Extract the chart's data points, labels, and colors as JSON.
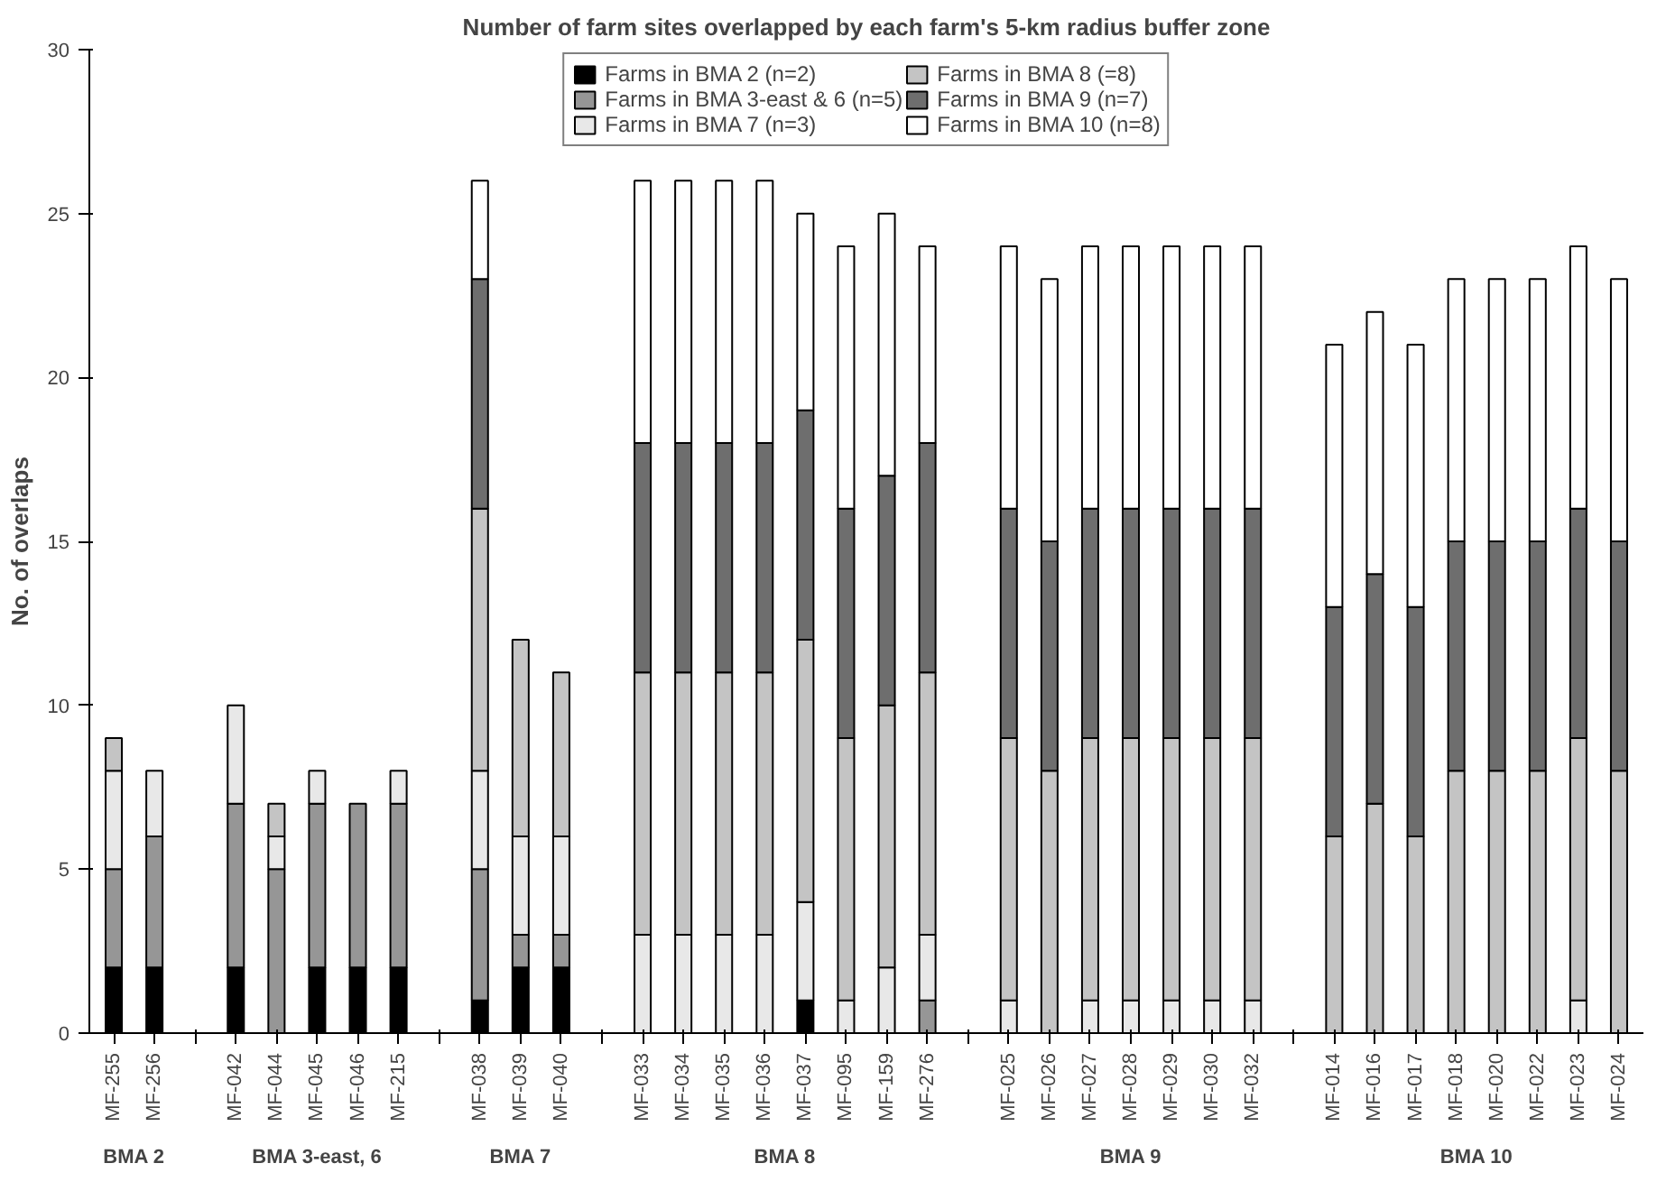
{
  "chart_data": {
    "type": "bar",
    "stacked": true,
    "title": "Number of farm sites overlapped by each farm's 5-km radius buffer zone",
    "ylabel": "No. of overlaps",
    "categories": [
      "MF-255",
      "MF-256",
      null,
      "MF-042",
      "MF-044",
      "MF-045",
      "MF-046",
      "MF-215",
      null,
      "MF-038",
      "MF-039",
      "MF-040",
      null,
      "MF-033",
      "MF-034",
      "MF-035",
      "MF-036",
      "MF-037",
      "MF-095",
      "MF-159",
      "MF-276",
      null,
      "MF-025",
      "MF-026",
      "MF-027",
      "MF-028",
      "MF-029",
      "MF-030",
      "MF-032",
      null,
      "MF-014",
      "MF-016",
      "MF-017",
      "MF-018",
      "MF-020",
      "MF-022",
      "MF-023",
      "MF-024"
    ],
    "series": [
      {
        "name": "Farms in BMA 2 (n=2)",
        "color": "#000000",
        "values": [
          2,
          2,
          null,
          2,
          0,
          2,
          2,
          2,
          null,
          1,
          2,
          2,
          null,
          0,
          0,
          0,
          0,
          1,
          0,
          0,
          0,
          null,
          0,
          0,
          0,
          0,
          0,
          0,
          0,
          null,
          0,
          0,
          0,
          0,
          0,
          0,
          0,
          0
        ]
      },
      {
        "name": "Farms in BMA 3-east & 6 (n=5)",
        "color": "#969696",
        "values": [
          3,
          4,
          null,
          5,
          5,
          5,
          5,
          5,
          null,
          4,
          1,
          1,
          null,
          0,
          0,
          0,
          0,
          0,
          0,
          0,
          1,
          null,
          0,
          0,
          0,
          0,
          0,
          0,
          0,
          null,
          0,
          0,
          0,
          0,
          0,
          0,
          0,
          0
        ]
      },
      {
        "name": "Farms in BMA 7 (n=3)",
        "color": "#e8e8e8",
        "values": [
          3,
          2,
          null,
          3,
          1,
          1,
          0,
          1,
          null,
          3,
          3,
          3,
          null,
          3,
          3,
          3,
          3,
          3,
          1,
          2,
          2,
          null,
          1,
          0,
          1,
          1,
          1,
          1,
          1,
          null,
          0,
          0,
          0,
          0,
          0,
          0,
          1,
          0
        ]
      },
      {
        "name": "Farms in BMA 8 (=8)",
        "color": "#c4c4c4",
        "values": [
          1,
          0,
          null,
          0,
          1,
          0,
          0,
          0,
          null,
          8,
          6,
          5,
          null,
          8,
          8,
          8,
          8,
          8,
          8,
          8,
          8,
          null,
          8,
          8,
          8,
          8,
          8,
          8,
          8,
          null,
          6,
          7,
          6,
          8,
          8,
          8,
          8,
          8
        ]
      },
      {
        "name": "Farms in BMA 9 (n=7)",
        "color": "#6e6e6e",
        "values": [
          0,
          0,
          null,
          0,
          0,
          0,
          0,
          0,
          null,
          7,
          0,
          0,
          null,
          7,
          7,
          7,
          7,
          7,
          7,
          7,
          7,
          null,
          7,
          7,
          7,
          7,
          7,
          7,
          7,
          null,
          7,
          7,
          7,
          7,
          7,
          7,
          7,
          7
        ]
      },
      {
        "name": "Farms in BMA 10 (n=8)",
        "color": "#ffffff",
        "values": [
          0,
          0,
          null,
          0,
          0,
          0,
          0,
          0,
          null,
          3,
          0,
          0,
          null,
          8,
          8,
          8,
          8,
          6,
          8,
          8,
          6,
          null,
          8,
          8,
          8,
          8,
          8,
          8,
          8,
          null,
          8,
          8,
          8,
          8,
          8,
          8,
          8,
          8
        ]
      }
    ],
    "annotations": [
      "BMA 2",
      "BMA 3-east, 6",
      "BMA 7",
      "BMA 8",
      "BMA 9",
      "BMA 10"
    ],
    "ylim": [
      0,
      30
    ],
    "yticks": [
      0,
      5,
      10,
      15,
      20,
      25,
      30
    ],
    "grid": false,
    "legend": "top"
  }
}
